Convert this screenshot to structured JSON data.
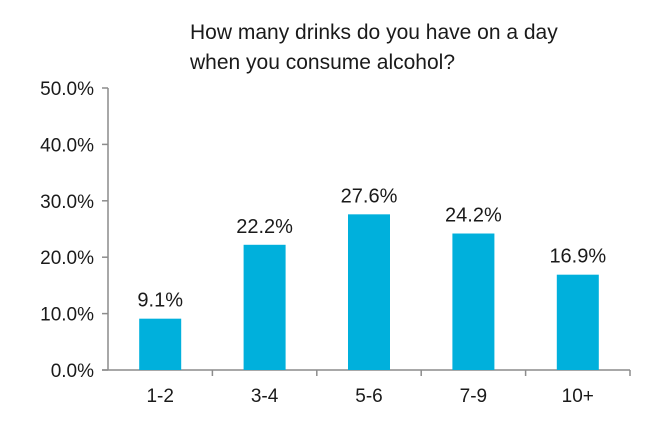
{
  "chart_data": {
    "type": "bar",
    "title_lines": [
      "How many drinks do you have on a day",
      "when you consume alcohol?"
    ],
    "categories": [
      "1-2",
      "3-4",
      "5-6",
      "7-9",
      "10+"
    ],
    "values": [
      9.1,
      22.2,
      27.6,
      24.2,
      16.9
    ],
    "data_labels": [
      "9.1%",
      "22.2%",
      "27.6%",
      "24.2%",
      "16.9%"
    ],
    "y_ticks": [
      {
        "value": 0,
        "label": "0.0%"
      },
      {
        "value": 10,
        "label": "10.0%"
      },
      {
        "value": 20,
        "label": "20.0%"
      },
      {
        "value": 30,
        "label": "30.0%"
      },
      {
        "value": 40,
        "label": "40.0%"
      },
      {
        "value": 50,
        "label": "50.0%"
      }
    ],
    "ylim": [
      0,
      50
    ],
    "xlabel": "",
    "ylabel": "",
    "grid": false,
    "legend": "none",
    "bar_color": "#00b0dc",
    "axis_color": "#8c8c8c"
  }
}
